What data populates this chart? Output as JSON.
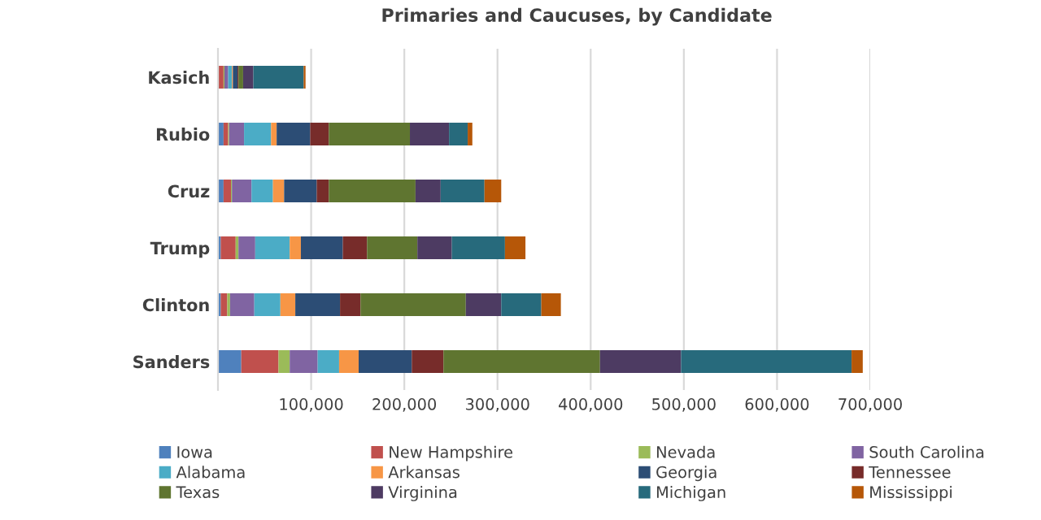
{
  "chart_data": {
    "type": "bar",
    "orientation": "horizontal",
    "stacked": true,
    "title": "Primaries and Caucuses, by Candidate",
    "categories": [
      "Kasich",
      "Rubio",
      "Cruz",
      "Trump",
      "Clinton",
      "Sanders"
    ],
    "series": [
      {
        "name": "Iowa",
        "color": "#4f81bd",
        "values": [
          null,
          6000,
          6000,
          3000,
          3000,
          25000
        ]
      },
      {
        "name": "New Hampshire",
        "color": "#c0504d",
        "values": [
          6000,
          5000,
          8000,
          16000,
          7000,
          40000
        ]
      },
      {
        "name": "Nevada",
        "color": "#9bbb59",
        "values": [
          1000,
          1000,
          1000,
          3000,
          3000,
          12000
        ]
      },
      {
        "name": "South Carolina",
        "color": "#8064a2",
        "values": [
          4000,
          16000,
          21000,
          18000,
          26000,
          30000
        ]
      },
      {
        "name": "Alabama",
        "color": "#4bacc6",
        "values": [
          4000,
          29000,
          23000,
          37000,
          28000,
          23000
        ]
      },
      {
        "name": "Arkansas",
        "color": "#f79646",
        "values": [
          1000,
          6000,
          12000,
          12000,
          16000,
          21000
        ]
      },
      {
        "name": "Georgia",
        "color": "#2c4d75",
        "values": [
          5000,
          36000,
          35000,
          45000,
          48000,
          57000
        ]
      },
      {
        "name": "Tennessee",
        "color": "#772c2a",
        "values": [
          1000,
          20000,
          13000,
          26000,
          22000,
          34000
        ]
      },
      {
        "name": "Texas",
        "color": "#5f7530",
        "values": [
          5000,
          87000,
          93000,
          54000,
          113000,
          168000
        ]
      },
      {
        "name": "Virginina",
        "color": "#4d3b62",
        "values": [
          11000,
          42000,
          27000,
          37000,
          38000,
          87000
        ]
      },
      {
        "name": "Michigan",
        "color": "#276a7c",
        "values": [
          54000,
          20000,
          47000,
          57000,
          43000,
          183000
        ]
      },
      {
        "name": "Mississippi",
        "color": "#b65708",
        "values": [
          2000,
          5000,
          18000,
          22000,
          21000,
          12000
        ]
      }
    ],
    "xlim": [
      0,
      700000
    ],
    "xticks": [
      {
        "value": 100000,
        "label": "100,000"
      },
      {
        "value": 200000,
        "label": "200,000"
      },
      {
        "value": 300000,
        "label": "300,000"
      },
      {
        "value": 400000,
        "label": "400,000"
      },
      {
        "value": 500000,
        "label": "500,000"
      },
      {
        "value": 600000,
        "label": "600,000"
      },
      {
        "value": 700000,
        "label": "700,000"
      }
    ],
    "grid": "x",
    "legend": "bottom"
  }
}
